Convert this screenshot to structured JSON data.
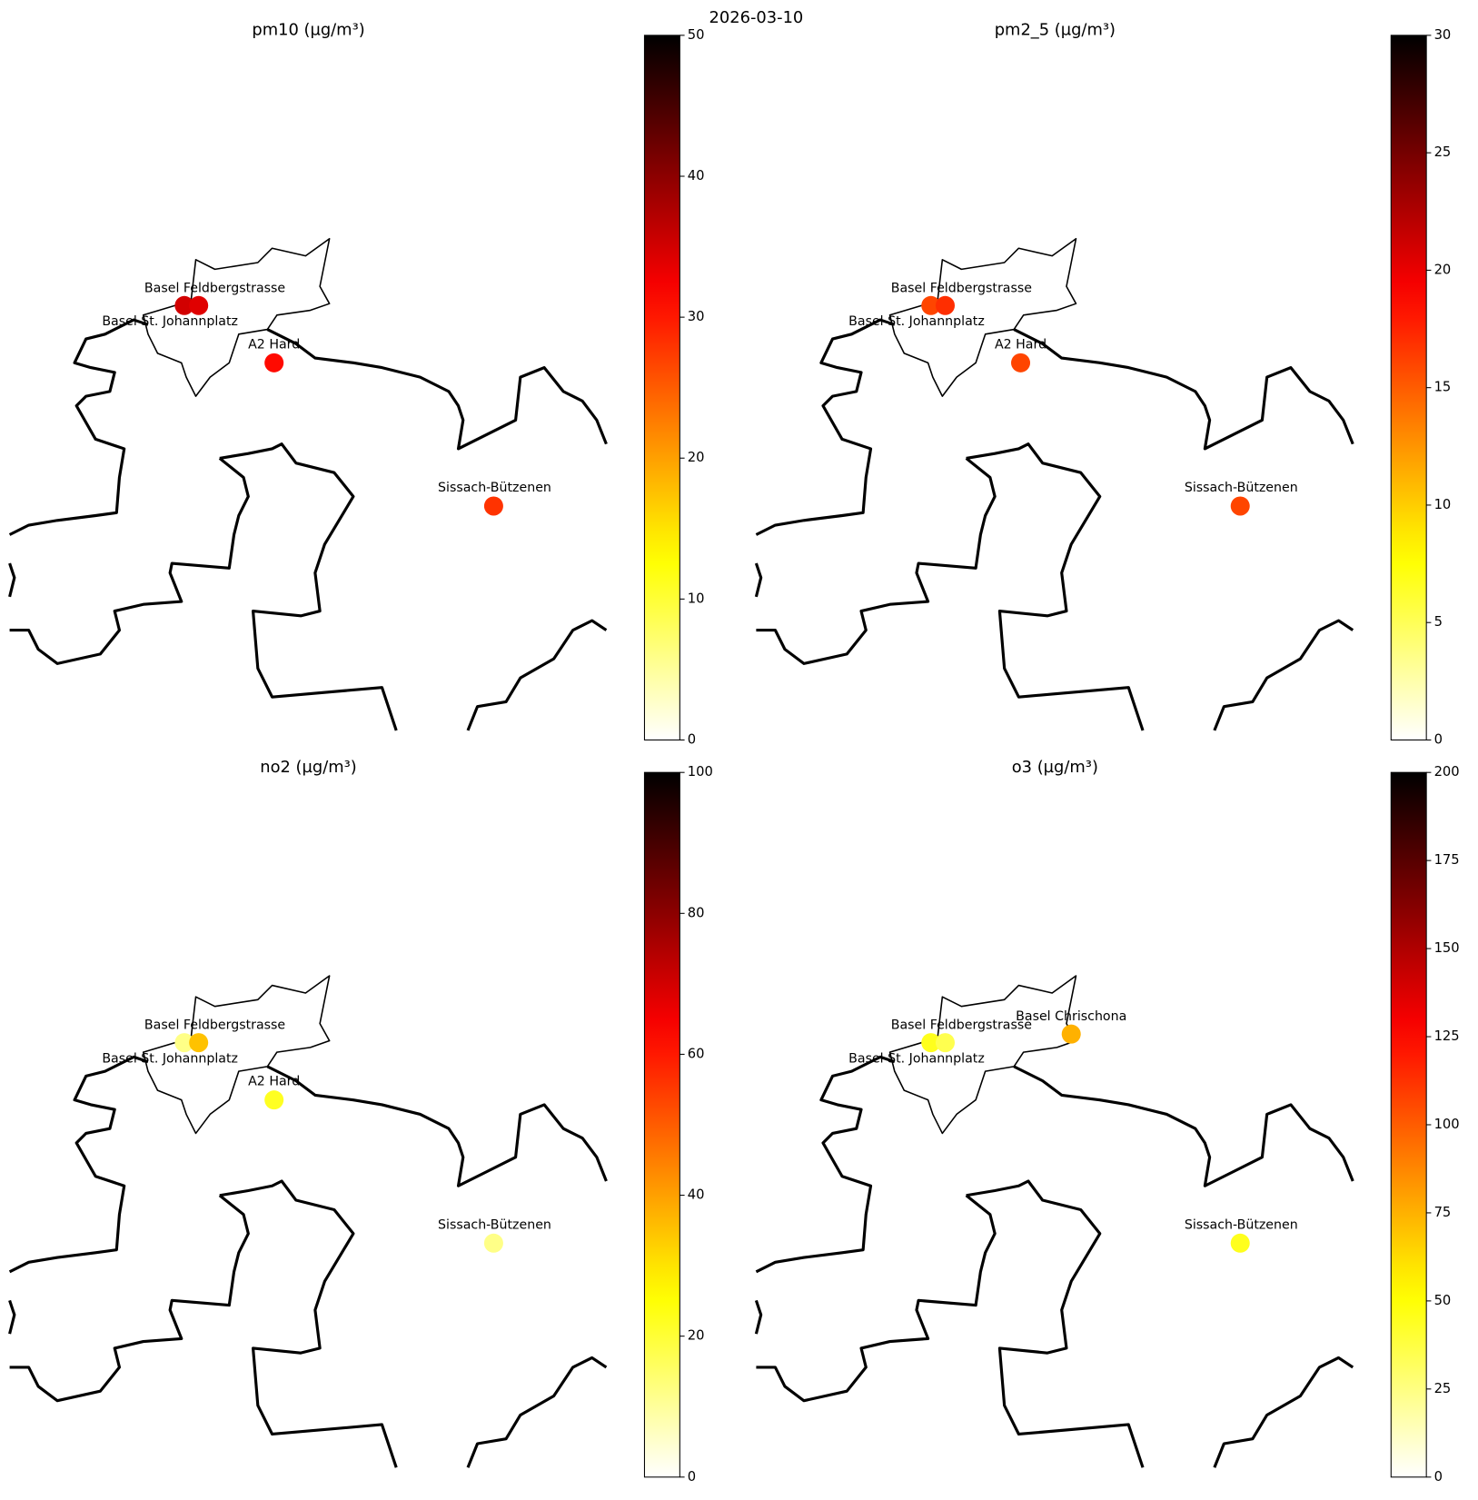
{
  "title": "2026-03-10",
  "chart_data": [
    {
      "type": "map",
      "title": "pm10 (µg/m³)",
      "colormap": "hot_r",
      "categories": [
        "Basel St. Johannplatz",
        "Basel Feldbergstrasse",
        "A2 Hard",
        "Sissach-Bützenen"
      ],
      "values": [
        35,
        34,
        31,
        28
      ],
      "clim": [
        0,
        50
      ],
      "cticks": [
        0,
        10,
        20,
        30,
        40,
        50
      ]
    },
    {
      "type": "map",
      "title": "pm2_5 (µg/m³)",
      "colormap": "hot_r",
      "categories": [
        "Basel St. Johannplatz",
        "Basel Feldbergstrasse",
        "A2 Hard",
        "Sissach-Bützenen"
      ],
      "values": [
        16,
        17,
        16,
        16
      ],
      "clim": [
        0,
        30
      ],
      "cticks": [
        0,
        5,
        10,
        15,
        20,
        25,
        30
      ]
    },
    {
      "type": "map",
      "title": "no2 (µg/m³)",
      "colormap": "hot_r",
      "categories": [
        "Basel St. Johannplatz",
        "Basel Feldbergstrasse",
        "A2 Hard",
        "Sissach-Bützenen"
      ],
      "values": [
        12,
        35,
        22,
        12
      ],
      "clim": [
        0,
        100
      ],
      "cticks": [
        0,
        20,
        40,
        60,
        80,
        100
      ]
    },
    {
      "type": "map",
      "title": "o3 (µg/m³)",
      "colormap": "hot_r",
      "categories": [
        "Basel St. Johannplatz",
        "Basel Feldbergstrasse",
        "Basel Chrischona",
        "Sissach-Bützenen"
      ],
      "values": [
        45,
        35,
        75,
        45
      ],
      "clim": [
        0,
        200
      ],
      "cticks": [
        0,
        25,
        50,
        75,
        100,
        125,
        150,
        175,
        200
      ]
    }
  ]
}
